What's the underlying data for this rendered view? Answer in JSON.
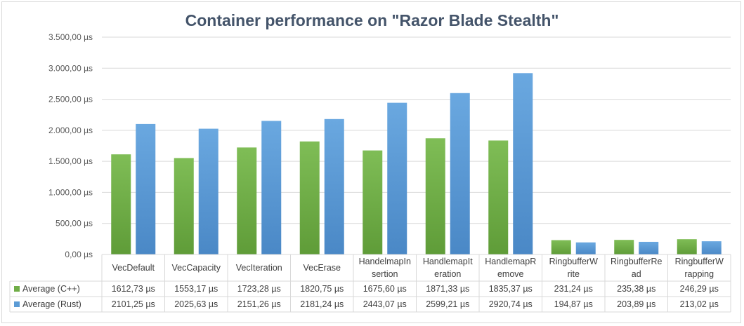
{
  "chart_data": {
    "type": "bar",
    "title": "Container performance on \"Razor Blade Stealth\"",
    "xlabel": "",
    "ylabel": "",
    "ylim": [
      0,
      3500
    ],
    "y_ticks": [
      "0,00 µs",
      "500,00 µs",
      "1.000,00 µs",
      "1.500,00 µs",
      "2.000,00 µs",
      "2.500,00 µs",
      "3.000,00 µs",
      "3.500,00 µs"
    ],
    "grid": true,
    "legend": "data-table",
    "categories": [
      [
        "VecDefault"
      ],
      [
        "VecCapacity"
      ],
      [
        "VecIteration"
      ],
      [
        "VecErase"
      ],
      [
        "HandelmapIn",
        "sertion"
      ],
      [
        "HandlemapIt",
        "eration"
      ],
      [
        "HandlemapR",
        "emove"
      ],
      [
        "RingbufferW",
        "rite"
      ],
      [
        "RingbufferRe",
        "ad"
      ],
      [
        "RingbufferW",
        "rapping"
      ]
    ],
    "series": [
      {
        "name": "Average (C++)",
        "color": "#70ad47",
        "values": [
          1612.73,
          1553.17,
          1723.28,
          1820.75,
          1675.6,
          1871.33,
          1835.37,
          231.24,
          235.38,
          246.29
        ],
        "labels": [
          "1612,73 µs",
          "1553,17 µs",
          "1723,28 µs",
          "1820,75 µs",
          "1675,60 µs",
          "1871,33 µs",
          "1835,37 µs",
          "231,24 µs",
          "235,38 µs",
          "246,29 µs"
        ]
      },
      {
        "name": "Average (Rust)",
        "color": "#5b9bd5",
        "values": [
          2101.25,
          2025.63,
          2151.26,
          2181.24,
          2443.07,
          2599.21,
          2920.74,
          194.87,
          203.89,
          213.02
        ],
        "labels": [
          "2101,25 µs",
          "2025,63 µs",
          "2151,26 µs",
          "2181,24 µs",
          "2443,07 µs",
          "2599,21 µs",
          "2920,74 µs",
          "194,87 µs",
          "203,89 µs",
          "213,02 µs"
        ]
      }
    ]
  }
}
